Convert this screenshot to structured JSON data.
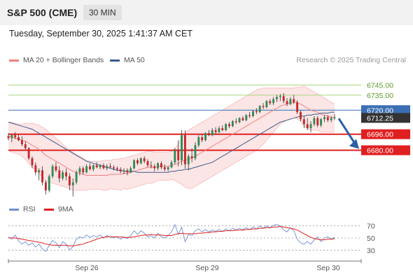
{
  "header": {
    "instrument": "S&P 500 (CME)",
    "timeframe": "30 MIN"
  },
  "datetime": "Tuesday, September 30, 2025 1:41:37 AM CET",
  "legend": {
    "ma20": "MA 20 + Bollinger Bands",
    "ma50": "MA 50",
    "copyright": "Research © 2025 Trading Central"
  },
  "rsi_legend": {
    "rsi": "RSI",
    "ma9": "9MA"
  },
  "colors": {
    "ma20": "#f08080",
    "ma50": "#3b5b8c",
    "bull": "#2e8b57",
    "bear": "#c62828",
    "resistance": "#a8d87a",
    "support": "#e02020",
    "pivot": "#3b6fb4",
    "current": "#333333",
    "rsi": "#6d8fd6",
    "rsi_ma": "#e02020",
    "arrow": "#2e5ea8"
  },
  "chart_data": {
    "type": "candlestick",
    "price_axis": {
      "ylim": [
        6633,
        6760
      ]
    },
    "x_ticks": [
      "Sep 26",
      "Sep 29",
      "Sep 30"
    ],
    "levels": [
      {
        "label": "6745.00",
        "value": 6745,
        "kind": "resistance"
      },
      {
        "label": "6735.00",
        "value": 6735,
        "kind": "resistance"
      },
      {
        "label": "6720.00",
        "value": 6720,
        "kind": "pivot"
      },
      {
        "label": "6712.25",
        "value": 6712.25,
        "kind": "current"
      },
      {
        "label": "6696.00",
        "value": 6696,
        "kind": "support"
      },
      {
        "label": "6680.00",
        "value": 6680,
        "kind": "support"
      }
    ],
    "ohlc": [
      [
        6694,
        6697,
        6690,
        6692
      ],
      [
        6692,
        6696,
        6688,
        6695
      ],
      [
        6695,
        6698,
        6691,
        6693
      ],
      [
        6693,
        6696,
        6689,
        6690
      ],
      [
        6690,
        6694,
        6684,
        6686
      ],
      [
        6686,
        6689,
        6680,
        6682
      ],
      [
        6682,
        6683,
        6670,
        6672
      ],
      [
        6672,
        6674,
        6662,
        6665
      ],
      [
        6665,
        6668,
        6655,
        6658
      ],
      [
        6658,
        6662,
        6650,
        6660
      ],
      [
        6660,
        6664,
        6645,
        6648
      ],
      [
        6648,
        6650,
        6636,
        6640
      ],
      [
        6640,
        6656,
        6638,
        6654
      ],
      [
        6654,
        6666,
        6652,
        6664
      ],
      [
        6664,
        6668,
        6658,
        6660
      ],
      [
        6660,
        6664,
        6648,
        6652
      ],
      [
        6652,
        6660,
        6650,
        6658
      ],
      [
        6658,
        6662,
        6650,
        6654
      ],
      [
        6654,
        6657,
        6640,
        6645
      ],
      [
        6645,
        6652,
        6634,
        6648
      ],
      [
        6648,
        6660,
        6646,
        6658
      ],
      [
        6658,
        6664,
        6655,
        6662
      ],
      [
        6662,
        6664,
        6656,
        6658
      ],
      [
        6658,
        6666,
        6657,
        6664
      ],
      [
        6664,
        6667,
        6660,
        6661
      ],
      [
        6661,
        6666,
        6659,
        6665
      ],
      [
        6665,
        6668,
        6662,
        6663
      ],
      [
        6663,
        6666,
        6661,
        6665
      ],
      [
        6665,
        6667,
        6661,
        6662
      ],
      [
        6662,
        6666,
        6660,
        6664
      ],
      [
        6664,
        6667,
        6662,
        6663
      ],
      [
        6663,
        6665,
        6660,
        6662
      ],
      [
        6662,
        6664,
        6659,
        6661
      ],
      [
        6661,
        6663,
        6657,
        6659
      ],
      [
        6659,
        6662,
        6656,
        6660
      ],
      [
        6660,
        6662,
        6655,
        6658
      ],
      [
        6658,
        6664,
        6657,
        6662
      ],
      [
        6662,
        6671,
        6661,
        6670
      ],
      [
        6670,
        6672,
        6665,
        6667
      ],
      [
        6667,
        6673,
        6666,
        6672
      ],
      [
        6672,
        6674,
        6667,
        6669
      ],
      [
        6669,
        6671,
        6663,
        6665
      ],
      [
        6665,
        6669,
        6662,
        6664
      ],
      [
        6664,
        6666,
        6659,
        6662
      ],
      [
        6662,
        6668,
        6660,
        6667
      ],
      [
        6667,
        6669,
        6661,
        6663
      ],
      [
        6663,
        6666,
        6659,
        6661
      ],
      [
        6661,
        6664,
        6659,
        6663
      ],
      [
        6663,
        6670,
        6662,
        6668
      ],
      [
        6668,
        6682,
        6666,
        6680
      ],
      [
        6680,
        6690,
        6664,
        6670
      ],
      [
        6670,
        6700,
        6665,
        6695
      ],
      [
        6695,
        6700,
        6662,
        6666
      ],
      [
        6666,
        6676,
        6660,
        6674
      ],
      [
        6674,
        6682,
        6668,
        6672
      ],
      [
        6672,
        6688,
        6670,
        6685
      ],
      [
        6685,
        6695,
        6683,
        6693
      ],
      [
        6693,
        6696,
        6688,
        6690
      ],
      [
        6690,
        6698,
        6689,
        6697
      ],
      [
        6697,
        6700,
        6694,
        6695
      ],
      [
        6695,
        6702,
        6694,
        6700
      ],
      [
        6700,
        6703,
        6696,
        6698
      ],
      [
        6698,
        6704,
        6697,
        6702
      ],
      [
        6702,
        6705,
        6699,
        6700
      ],
      [
        6700,
        6707,
        6699,
        6706
      ],
      [
        6706,
        6708,
        6702,
        6704
      ],
      [
        6704,
        6710,
        6703,
        6709
      ],
      [
        6709,
        6712,
        6706,
        6708
      ],
      [
        6708,
        6713,
        6707,
        6712
      ],
      [
        6712,
        6714,
        6709,
        6710
      ],
      [
        6710,
        6716,
        6709,
        6715
      ],
      [
        6715,
        6718,
        6712,
        6714
      ],
      [
        6714,
        6720,
        6713,
        6719
      ],
      [
        6719,
        6722,
        6716,
        6718
      ],
      [
        6718,
        6725,
        6717,
        6724
      ],
      [
        6724,
        6727,
        6721,
        6723
      ],
      [
        6723,
        6730,
        6722,
        6729
      ],
      [
        6729,
        6731,
        6725,
        6727
      ],
      [
        6727,
        6733,
        6725,
        6731
      ],
      [
        6731,
        6735,
        6728,
        6733
      ],
      [
        6733,
        6736,
        6729,
        6734
      ],
      [
        6734,
        6737,
        6727,
        6729
      ],
      [
        6729,
        6732,
        6724,
        6726
      ],
      [
        6726,
        6733,
        6725,
        6731
      ],
      [
        6731,
        6735,
        6726,
        6728
      ],
      [
        6728,
        6730,
        6716,
        6718
      ],
      [
        6718,
        6720,
        6709,
        6711
      ],
      [
        6711,
        6714,
        6702,
        6706
      ],
      [
        6706,
        6712,
        6700,
        6702
      ],
      [
        6702,
        6709,
        6698,
        6706
      ],
      [
        6706,
        6714,
        6704,
        6712
      ],
      [
        6712,
        6714,
        6703,
        6705
      ],
      [
        6705,
        6712,
        6703,
        6711
      ],
      [
        6711,
        6715,
        6708,
        6713
      ],
      [
        6713,
        6715,
        6708,
        6710
      ],
      [
        6710,
        6714,
        6708,
        6712
      ],
      [
        6712,
        6716,
        6710,
        6713
      ]
    ],
    "ma20": [
      6694,
      6693,
      6692,
      6691,
      6690,
      6689,
      6687,
      6685,
      6683,
      6681,
      6678,
      6675,
      6673,
      6671,
      6669,
      6667,
      6665,
      6663,
      6661,
      6659,
      6658,
      6657,
      6656,
      6655,
      6655,
      6655,
      6655,
      6655,
      6655,
      6655,
      6656,
      6656,
      6656,
      6656,
      6657,
      6657,
      6658,
      6659,
      6660,
      6661,
      6662,
      6663,
      6663,
      6663,
      6664,
      6664,
      6664,
      6664,
      6665,
      6666,
      6667,
      6669,
      6670,
      6671,
      6672,
      6674,
      6676,
      6678,
      6680,
      6682,
      6684,
      6686,
      6688,
      6690,
      6692,
      6694,
      6696,
      6698,
      6700,
      6702,
      6704,
      6706,
      6708,
      6710,
      6712,
      6714,
      6716,
      6718,
      6720,
      6722,
      6724,
      6725,
      6726,
      6727,
      6728,
      6727,
      6726,
      6724,
      6722,
      6720,
      6719,
      6718,
      6716,
      6715,
      6714,
      6713,
      6712
    ],
    "bb_upper": [
      6708,
      6708,
      6707,
      6706,
      6706,
      6707,
      6707,
      6707,
      6706,
      6705,
      6703,
      6701,
      6698,
      6695,
      6692,
      6689,
      6686,
      6683,
      6680,
      6678,
      6676,
      6674,
      6672,
      6670,
      6669,
      6669,
      6669,
      6669,
      6670,
      6670,
      6670,
      6671,
      6671,
      6672,
      6672,
      6673,
      6674,
      6675,
      6676,
      6677,
      6678,
      6679,
      6679,
      6678,
      6678,
      6678,
      6678,
      6678,
      6679,
      6682,
      6686,
      6692,
      6697,
      6700,
      6702,
      6704,
      6706,
      6708,
      6710,
      6712,
      6714,
      6716,
      6718,
      6720,
      6722,
      6724,
      6726,
      6728,
      6730,
      6732,
      6734,
      6736,
      6738,
      6740,
      6741,
      6742,
      6742,
      6742,
      6742,
      6742,
      6742,
      6742,
      6742,
      6742,
      6742,
      6743,
      6743,
      6744,
      6742,
      6740,
      6738,
      6736,
      6734,
      6732,
      6730,
      6728,
      6726
    ],
    "bb_lower": [
      6680,
      6678,
      6677,
      6676,
      6674,
      6671,
      6667,
      6663,
      6660,
      6657,
      6653,
      6649,
      6648,
      6647,
      6646,
      6645,
      6644,
      6643,
      6642,
      6640,
      6640,
      6640,
      6640,
      6640,
      6641,
      6641,
      6641,
      6641,
      6640,
      6640,
      6642,
      6641,
      6641,
      6640,
      6642,
      6641,
      6642,
      6643,
      6644,
      6645,
      6646,
      6647,
      6647,
      6648,
      6650,
      6650,
      6650,
      6650,
      6651,
      6650,
      6648,
      6646,
      6643,
      6642,
      6642,
      6644,
      6646,
      6648,
      6650,
      6652,
      6654,
      6656,
      6658,
      6660,
      6662,
      6664,
      6666,
      6668,
      6670,
      6672,
      6674,
      6676,
      6678,
      6680,
      6683,
      6686,
      6690,
      6694,
      6698,
      6702,
      6706,
      6708,
      6710,
      6712,
      6714,
      6711,
      6709,
      6704,
      6702,
      6700,
      6700,
      6700,
      6698,
      6698,
      6698,
      6698,
      6698
    ],
    "ma50": [
      6708,
      6707,
      6706,
      6705,
      6704,
      6703,
      6702,
      6701,
      6699,
      6697,
      6695,
      6693,
      6691,
      6689,
      6687,
      6685,
      6683,
      6681,
      6679,
      6677,
      6675,
      6673,
      6671,
      6669,
      6668,
      6667,
      6666,
      6665,
      6664,
      6663,
      6662,
      6661,
      6660,
      6660,
      6659,
      6659,
      6659,
      6659,
      6658,
      6658,
      6658,
      6658,
      6658,
      6658,
      6658,
      6658,
      6658,
      6658,
      6659,
      6659,
      6660,
      6660,
      6661,
      6661,
      6662,
      6663,
      6664,
      6665,
      6666,
      6667,
      6668,
      6670,
      6672,
      6674,
      6676,
      6678,
      6680,
      6682,
      6684,
      6686,
      6688,
      6690,
      6692,
      6694,
      6696,
      6698,
      6700,
      6702,
      6704,
      6706,
      6708,
      6709,
      6710,
      6711,
      6712,
      6713,
      6714,
      6714,
      6715,
      6715,
      6716,
      6716,
      6717,
      6717,
      6717,
      6718,
      6718
    ],
    "rsi_axis": {
      "ylim": [
        20,
        80
      ],
      "ticks": [
        "70",
        "50",
        "30"
      ]
    },
    "rsi": [
      52,
      48,
      55,
      45,
      40,
      44,
      38,
      42,
      35,
      40,
      32,
      28,
      38,
      46,
      42,
      34,
      44,
      40,
      30,
      36,
      48,
      52,
      50,
      55,
      51,
      54,
      52,
      55,
      50,
      54,
      52,
      50,
      52,
      48,
      52,
      49,
      54,
      62,
      56,
      62,
      58,
      52,
      54,
      50,
      58,
      52,
      50,
      54,
      60,
      72,
      56,
      68,
      44,
      56,
      54,
      62,
      65,
      60,
      64,
      60,
      63,
      61,
      64,
      61,
      65,
      62,
      66,
      63,
      66,
      64,
      67,
      64,
      68,
      65,
      70,
      66,
      70,
      67,
      71,
      72,
      70,
      63,
      60,
      67,
      62,
      48,
      42,
      40,
      44,
      40,
      47,
      52,
      44,
      50,
      52,
      48,
      51
    ],
    "rsi_ma": [
      50,
      50,
      50,
      49,
      48,
      47,
      46,
      45,
      44,
      43,
      42,
      40,
      39,
      38,
      38,
      38,
      38,
      38,
      37,
      37,
      38,
      39,
      40,
      42,
      44,
      46,
      48,
      50,
      51,
      52,
      52,
      52,
      52,
      52,
      51,
      51,
      51,
      52,
      53,
      54,
      55,
      55,
      56,
      55,
      55,
      55,
      54,
      54,
      54,
      56,
      57,
      58,
      57,
      57,
      57,
      57,
      58,
      58,
      59,
      59,
      60,
      60,
      61,
      61,
      62,
      62,
      62,
      63,
      63,
      63,
      64,
      64,
      65,
      65,
      66,
      66,
      67,
      67,
      68,
      68,
      69,
      68,
      67,
      66,
      65,
      63,
      60,
      57,
      54,
      51,
      49,
      48,
      47,
      47,
      48,
      48,
      49
    ]
  }
}
